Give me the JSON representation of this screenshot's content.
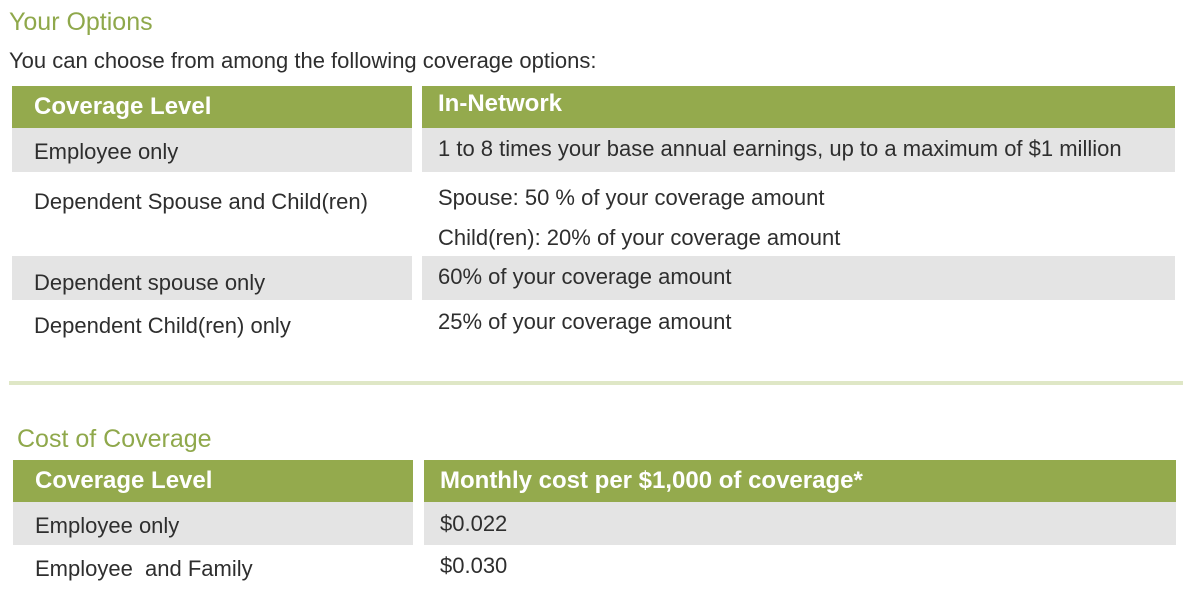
{
  "options": {
    "title": "Your Options",
    "intro": "You can choose from among the following coverage options:",
    "header": {
      "level": "Coverage Level",
      "value": "In-Network"
    },
    "rows": [
      {
        "level": "Employee only",
        "value": "1 to 8 times your base annual earnings, up to a maximum of $1 million"
      },
      {
        "level": "Dependent Spouse and Child(ren)",
        "value": "Spouse: 50 % of your coverage amount",
        "value2": "Child(ren): 20% of your coverage amount"
      },
      {
        "level": "Dependent spouse only",
        "value": "60% of your coverage amount"
      },
      {
        "level": "Dependent Child(ren) only",
        "value": "25% of your coverage amount"
      }
    ]
  },
  "cost": {
    "title": "Cost of Coverage",
    "header": {
      "level": "Coverage Level",
      "value": "Monthly cost per $1,000 of coverage*"
    },
    "rows": [
      {
        "level": "Employee only",
        "value": "$0.022"
      },
      {
        "level": "Employee  and Family",
        "value": "$0.030"
      }
    ]
  },
  "colors": {
    "accent": "#94aa4d",
    "heading": "#8fa84b",
    "row_shade": "#e4e4e4",
    "divider": "#dfe7c6"
  }
}
